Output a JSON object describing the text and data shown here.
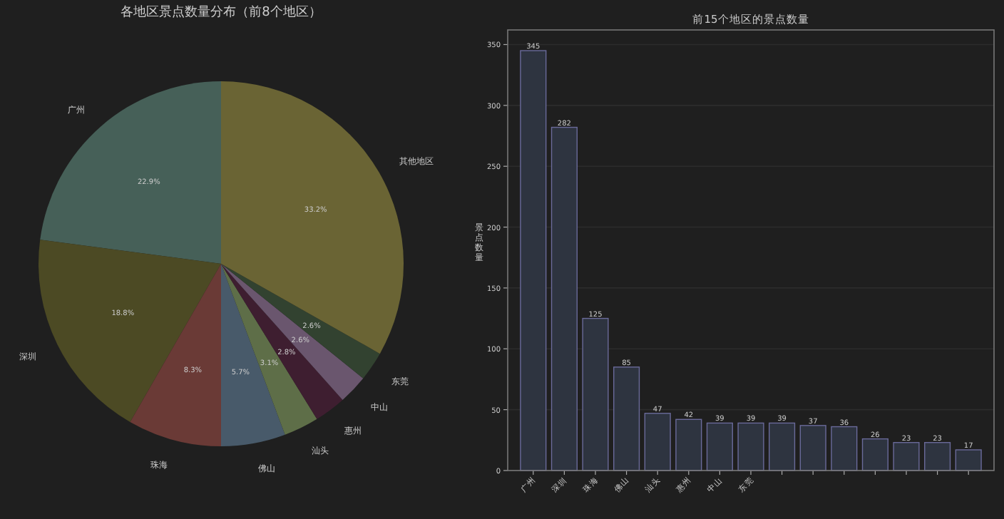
{
  "chart_data": [
    {
      "type": "pie",
      "title": "各地区景点数量分布（前8个地区）",
      "categories": [
        "广州",
        "深圳",
        "珠海",
        "佛山",
        "汕头",
        "惠州",
        "中山",
        "东莞",
        "其他地区"
      ],
      "values": [
        22.9,
        18.8,
        8.3,
        5.7,
        3.1,
        2.8,
        2.6,
        2.6,
        33.2
      ],
      "colors": [
        "#466058",
        "#4c4a24",
        "#6a3a36",
        "#485a6a",
        "#5e6e48",
        "#3e1e30",
        "#6a566e",
        "#324230",
        "#6a6434"
      ],
      "value_labels": [
        "22.9%",
        "18.8%",
        "8.3%",
        "5.7%",
        "3.1%",
        "2.8%",
        "2.6%",
        "2.6%",
        "33.2%"
      ]
    },
    {
      "type": "bar",
      "title": "前15个地区的景点数量",
      "ylabel": "景点数量",
      "categories": [
        "广州",
        "深圳",
        "珠海",
        "佛山",
        "汕头",
        "惠州",
        "中山",
        "东莞",
        null,
        null,
        null,
        null,
        null,
        null,
        null
      ],
      "values": [
        345,
        282,
        125,
        85,
        47,
        42,
        39,
        39,
        39,
        37,
        36,
        26,
        23,
        23,
        17
      ],
      "color": "#2e3440",
      "ylim": [
        0,
        362
      ],
      "yticks": [
        0,
        50,
        100,
        150,
        200,
        250,
        300,
        350
      ],
      "grid": "y",
      "data_labels": true
    }
  ]
}
